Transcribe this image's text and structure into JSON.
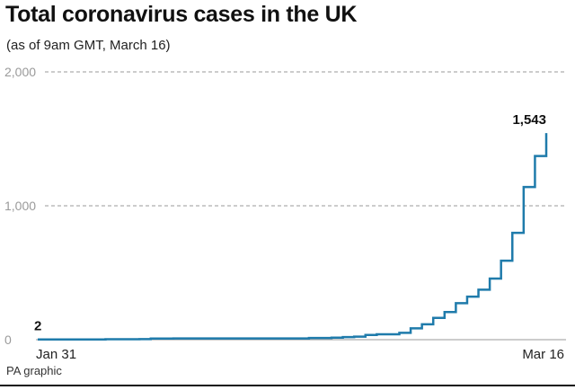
{
  "title": "Total coronavirus cases in the UK",
  "subtitle": "(as of 9am GMT, March 16)",
  "source": "PA graphic",
  "colors": {
    "series": "#1f7bab",
    "grid": "#9a9a9a"
  },
  "chart_data": {
    "type": "line",
    "step": true,
    "title": "Total coronavirus cases in the UK",
    "subtitle": "(as of 9am GMT, March 16)",
    "xlabel": "",
    "ylabel": "",
    "ylim": [
      0,
      2000
    ],
    "yticks": [
      0,
      1000,
      2000
    ],
    "ytick_labels": [
      "0",
      "1,000",
      "2,000"
    ],
    "xtick_labels": [
      "Jan 31",
      "Mar 16"
    ],
    "grid": true,
    "series": [
      {
        "x": [
          "Jan 31",
          "Feb 1",
          "Feb 2",
          "Feb 3",
          "Feb 4",
          "Feb 5",
          "Feb 6",
          "Feb 7",
          "Feb 8",
          "Feb 9",
          "Feb 10",
          "Feb 11",
          "Feb 12",
          "Feb 13",
          "Feb 14",
          "Feb 15",
          "Feb 16",
          "Feb 17",
          "Feb 18",
          "Feb 19",
          "Feb 20",
          "Feb 21",
          "Feb 22",
          "Feb 23",
          "Feb 24",
          "Feb 25",
          "Feb 26",
          "Feb 27",
          "Feb 28",
          "Feb 29",
          "Mar 1",
          "Mar 2",
          "Mar 3",
          "Mar 4",
          "Mar 5",
          "Mar 6",
          "Mar 7",
          "Mar 8",
          "Mar 9",
          "Mar 10",
          "Mar 11",
          "Mar 12",
          "Mar 13",
          "Mar 14",
          "Mar 15",
          "Mar 16"
        ],
        "values": [
          2,
          2,
          2,
          2,
          2,
          2,
          3,
          3,
          3,
          4,
          8,
          8,
          9,
          9,
          9,
          9,
          9,
          9,
          9,
          9,
          9,
          9,
          9,
          9,
          13,
          13,
          15,
          19,
          23,
          35,
          40,
          40,
          51,
          85,
          115,
          163,
          206,
          273,
          321,
          373,
          456,
          590,
          798,
          1140,
          1372,
          1543
        ]
      }
    ],
    "annotations": [
      {
        "text": "2",
        "x": "Jan 31",
        "value": 2
      },
      {
        "text": "1,543",
        "x": "Mar 16",
        "value": 1543
      }
    ]
  }
}
